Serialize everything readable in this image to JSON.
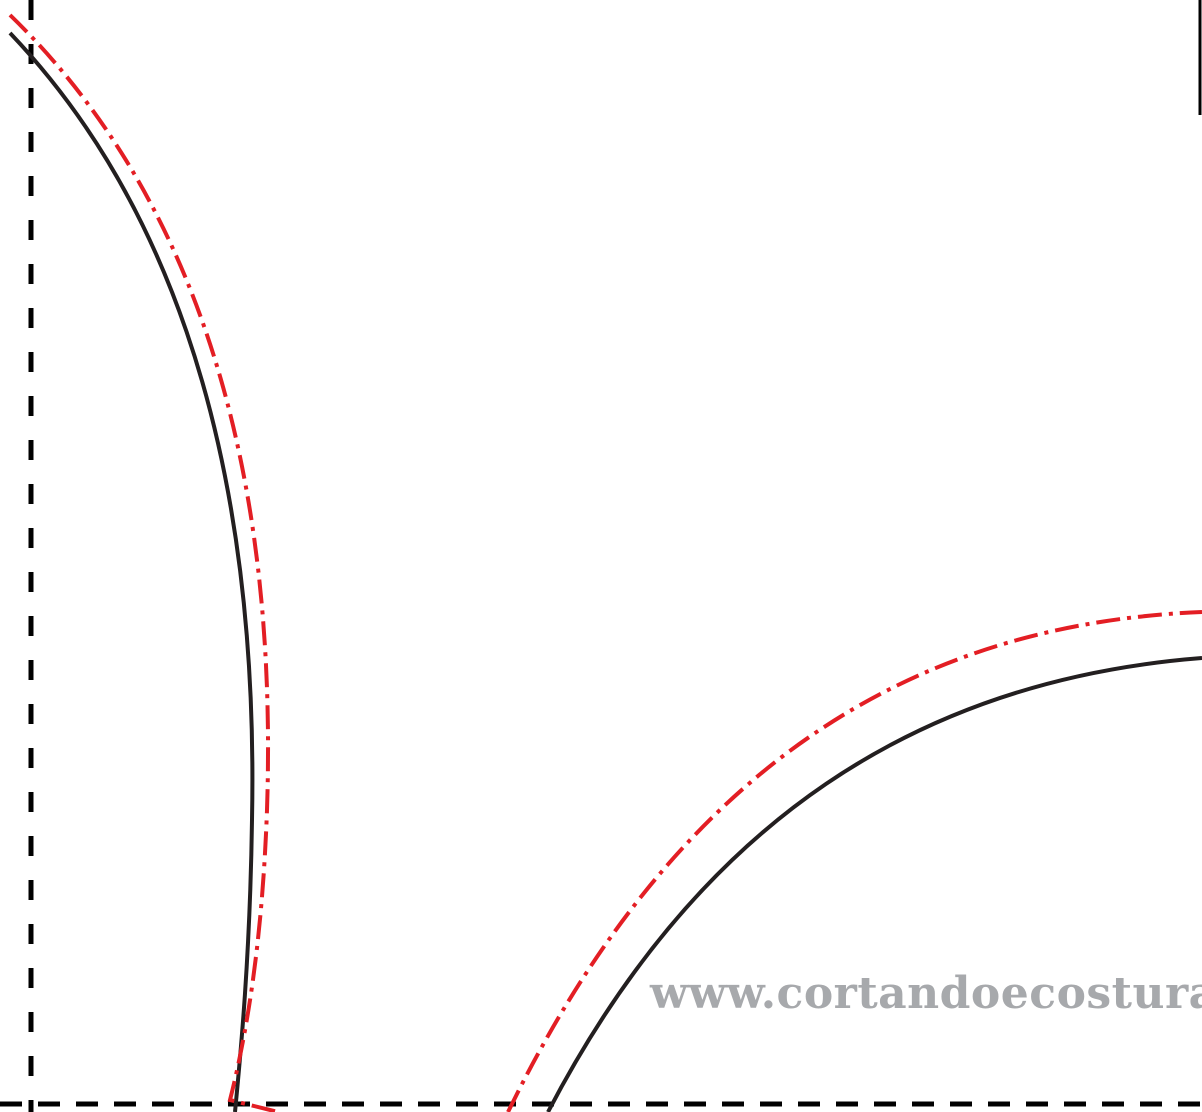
{
  "watermark": {
    "text": "www.cortandoecosturando.c"
  },
  "colors": {
    "stitch_line": "#231f20",
    "seam_allowance": "#e31e24",
    "fold_line": "#000000",
    "watermark": "#a7a9ac",
    "background": "#ffffff"
  }
}
